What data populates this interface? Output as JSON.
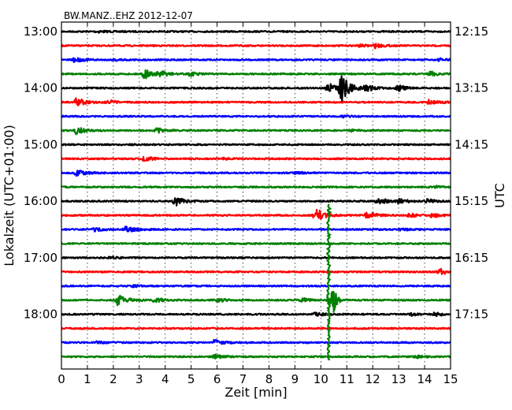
{
  "chart_data": {
    "type": "line",
    "title": "BW.MANZ..EHZ 2012-12-07",
    "xlabel": "Zeit  [min]",
    "ylabel_left": "Lokalzeit (UTC+01:00)",
    "ylabel_right": "UTC",
    "xlim": [
      0,
      15
    ],
    "x_ticks": [
      "0",
      "1",
      "2",
      "3",
      "4",
      "5",
      "6",
      "7",
      "8",
      "9",
      "10",
      "11",
      "12",
      "13",
      "14",
      "15"
    ],
    "grid": "vertical dotted",
    "left_ticks": [
      {
        "label": "13:00",
        "trace": 0
      },
      {
        "label": "14:00",
        "trace": 4
      },
      {
        "label": "15:00",
        "trace": 8
      },
      {
        "label": "16:00",
        "trace": 12
      },
      {
        "label": "17:00",
        "trace": 16
      },
      {
        "label": "18:00",
        "trace": 20
      }
    ],
    "right_ticks": [
      {
        "label": "12:15",
        "trace": 0
      },
      {
        "label": "13:15",
        "trace": 4
      },
      {
        "label": "14:15",
        "trace": 8
      },
      {
        "label": "15:15",
        "trace": 12
      },
      {
        "label": "16:15",
        "trace": 16
      },
      {
        "label": "17:15",
        "trace": 20
      }
    ],
    "trace_interval_min": 15,
    "color_cycle": [
      "#000000",
      "#ff0000",
      "#0000ff",
      "#008000"
    ],
    "traces": [
      {
        "events": [
          {
            "t": 1.4,
            "amp": 0.12
          }
        ]
      },
      {
        "events": [
          {
            "t": 12.1,
            "amp": 0.25
          },
          {
            "t": 11.5,
            "amp": 0.12
          }
        ]
      },
      {
        "events": [
          {
            "t": 0.5,
            "amp": 0.3
          },
          {
            "t": 2.1,
            "amp": 0.12
          },
          {
            "t": 14.6,
            "amp": 0.15
          }
        ]
      },
      {
        "events": [
          {
            "t": 3.2,
            "amp": 0.6
          },
          {
            "t": 3.8,
            "amp": 0.35
          },
          {
            "t": 4.9,
            "amp": 0.3
          },
          {
            "t": 14.2,
            "amp": 0.3
          }
        ]
      },
      {
        "events": [
          {
            "t": 10.8,
            "amp": 1.7
          },
          {
            "t": 10.3,
            "amp": 0.6
          },
          {
            "t": 11.7,
            "amp": 0.5
          },
          {
            "t": 13.0,
            "amp": 0.35
          }
        ]
      },
      {
        "events": [
          {
            "t": 0.6,
            "amp": 0.55
          },
          {
            "t": 1.8,
            "amp": 0.25
          },
          {
            "t": 14.2,
            "amp": 0.3
          }
        ]
      },
      {
        "events": [
          {
            "t": 10.8,
            "amp": 0.12
          }
        ]
      },
      {
        "events": [
          {
            "t": 0.6,
            "amp": 0.5
          },
          {
            "t": 3.7,
            "amp": 0.3
          },
          {
            "t": 11.2,
            "amp": 0.12
          }
        ]
      },
      {
        "events": []
      },
      {
        "events": [
          {
            "t": 3.2,
            "amp": 0.3
          },
          {
            "t": 6.3,
            "amp": 0.12
          }
        ]
      },
      {
        "events": [
          {
            "t": 0.6,
            "amp": 0.4
          },
          {
            "t": 9.0,
            "amp": 0.12
          }
        ]
      },
      {
        "events": [
          {
            "t": 14.4,
            "amp": 0.12
          }
        ]
      },
      {
        "events": [
          {
            "t": 4.4,
            "amp": 0.55
          },
          {
            "t": 12.2,
            "amp": 0.45
          },
          {
            "t": 13.0,
            "amp": 0.3
          },
          {
            "t": 14.1,
            "amp": 0.25
          }
        ]
      },
      {
        "events": [
          {
            "t": 9.8,
            "amp": 1.0
          },
          {
            "t": 11.8,
            "amp": 0.5
          },
          {
            "t": 13.4,
            "amp": 0.25
          },
          {
            "t": 14.3,
            "amp": 0.25
          }
        ]
      },
      {
        "events": [
          {
            "t": 1.3,
            "amp": 0.2
          },
          {
            "t": 2.5,
            "amp": 0.45
          },
          {
            "t": 13.1,
            "amp": 0.12
          }
        ]
      },
      {
        "events": []
      },
      {
        "events": [
          {
            "t": 1.9,
            "amp": 0.12
          }
        ]
      },
      {
        "events": [
          {
            "t": 14.6,
            "amp": 0.4
          }
        ]
      },
      {
        "events": [
          {
            "t": 2.8,
            "amp": 0.12
          }
        ]
      },
      {
        "events": [
          {
            "t": 2.2,
            "amp": 0.7
          },
          {
            "t": 3.6,
            "amp": 0.3
          },
          {
            "t": 6.0,
            "amp": 0.25
          },
          {
            "t": 9.3,
            "amp": 0.25
          }
        ]
      },
      {
        "events": [
          {
            "t": 9.8,
            "amp": 0.2
          },
          {
            "t": 13.5,
            "amp": 0.15
          },
          {
            "t": 14.4,
            "amp": 0.3
          }
        ]
      },
      {
        "events": []
      },
      {
        "events": [
          {
            "t": 1.4,
            "amp": 0.15
          },
          {
            "t": 5.9,
            "amp": 0.35
          }
        ]
      },
      {
        "events": [
          {
            "t": 5.9,
            "amp": 0.25
          },
          {
            "t": 13.7,
            "amp": 0.12
          }
        ]
      }
    ],
    "spike": {
      "t": 10.3,
      "from_trace": 12.2,
      "to_trace": 23.3,
      "color": "#008000",
      "burst_trace": 19,
      "burst_t": 10.5
    }
  }
}
